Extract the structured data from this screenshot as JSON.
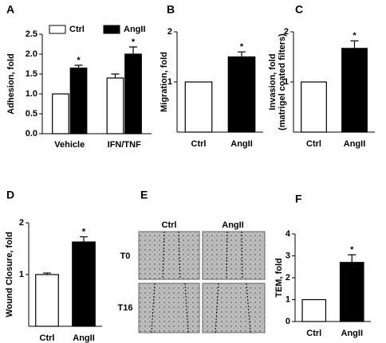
{
  "chart_data": [
    {
      "type": "grouped_bar",
      "panel": "A",
      "ylabel": "Adhesion, fold",
      "categories": [
        "Vehicle",
        "IFN/TNF"
      ],
      "series": [
        {
          "name": "Ctrl",
          "color": "#ffffff",
          "values": [
            1.0,
            1.4
          ],
          "errors": [
            0,
            0.1
          ],
          "labels": [
            null,
            null
          ]
        },
        {
          "name": "AngII",
          "color": "#000000",
          "values": [
            1.65,
            2.0
          ],
          "errors": [
            0.07,
            0.18
          ],
          "labels": [
            "*",
            "*"
          ]
        }
      ],
      "ylim": [
        0,
        2.5
      ],
      "yticks": [
        {
          "value": 0,
          "label": "0.0"
        },
        0.5,
        {
          "value": 1,
          "label": "1.0"
        },
        1.5,
        {
          "value": 2,
          "label": "2.0"
        },
        2.5
      ]
    },
    {
      "type": "bar",
      "panel": "B",
      "ylabel": "Migration, fold",
      "categories": [
        "Ctrl",
        "AngII"
      ],
      "colors": [
        "#ffffff",
        "#000000"
      ],
      "values": [
        1.0,
        1.5
      ],
      "errors": [
        0,
        0.1
      ],
      "labels": [
        null,
        "*"
      ],
      "ylim": [
        0,
        2
      ],
      "yticks": [
        1,
        2
      ]
    },
    {
      "type": "bar",
      "panel": "C",
      "ylabel": [
        "Invasion, fold",
        "(matrigel coated filters)"
      ],
      "categories": [
        "Ctrl",
        "AngII"
      ],
      "colors": [
        "#ffffff",
        "#000000"
      ],
      "values": [
        1.0,
        1.67
      ],
      "errors": [
        0,
        0.15
      ],
      "labels": [
        null,
        "*"
      ],
      "ylim": [
        0,
        2
      ],
      "yticks": [
        1,
        2
      ]
    },
    {
      "type": "bar",
      "panel": "D",
      "ylabel": "Wound Closure, fold",
      "categories": [
        "Ctrl",
        "AngII"
      ],
      "colors": [
        "#ffffff",
        "#000000"
      ],
      "values": [
        1.0,
        1.63
      ],
      "errors": [
        0.03,
        0.1
      ],
      "labels": [
        null,
        "*"
      ],
      "ylim": [
        0,
        2
      ],
      "yticks": [
        1,
        2
      ]
    },
    {
      "type": "bar",
      "panel": "F",
      "ylabel": "TEM, fold",
      "categories": [
        "Ctrl",
        "AngII"
      ],
      "colors": [
        "#ffffff",
        "#000000"
      ],
      "values": [
        1.0,
        2.7
      ],
      "errors": [
        0,
        0.35
      ],
      "labels": [
        null,
        "*"
      ],
      "ylim": [
        0,
        4
      ],
      "yticks": [
        0,
        1,
        2,
        3,
        4
      ]
    }
  ],
  "panel_e": {
    "panel": "E",
    "columns": [
      "Ctrl",
      "AngII"
    ],
    "rows": [
      "T0",
      "T16"
    ]
  }
}
